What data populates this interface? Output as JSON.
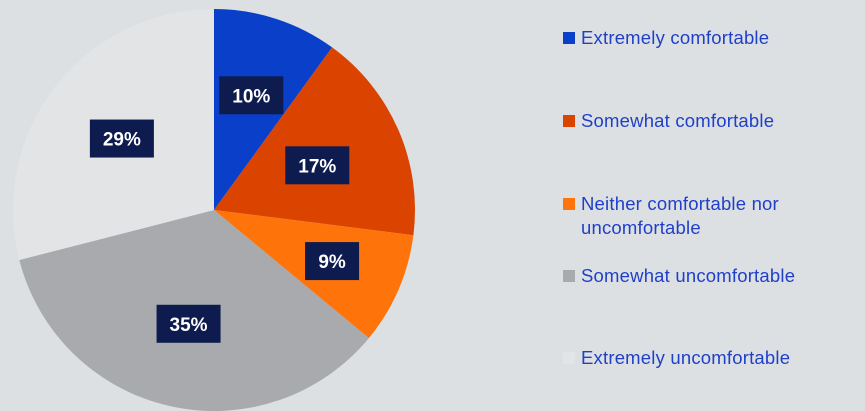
{
  "chart_data": {
    "type": "pie",
    "start_angle_deg": 0,
    "direction": "clockwise",
    "slices": [
      {
        "label": "Extremely comfortable",
        "value": 10,
        "value_label": "10%",
        "color": "#0a3fc9"
      },
      {
        "label": "Somewhat comfortable",
        "value": 17,
        "value_label": "17%",
        "color": "#da4300"
      },
      {
        "label": "Neither comfortable nor uncomfortable",
        "value": 9,
        "value_label": "9%",
        "color": "#ff740a"
      },
      {
        "label": "Somewhat uncomfortable",
        "value": 35,
        "value_label": "35%",
        "color": "#a8aaad"
      },
      {
        "label": "Extremely uncomfortable",
        "value": 29,
        "value_label": "29%",
        "color": "#e3e4e6"
      }
    ],
    "legend_position": "right",
    "label_box_color": "#0d1b4e"
  }
}
